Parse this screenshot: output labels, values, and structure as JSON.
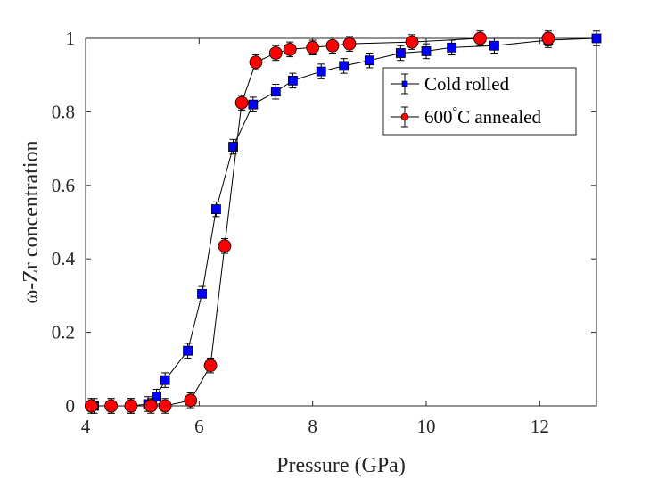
{
  "chart_data": {
    "type": "scatter",
    "title": "",
    "xlabel": "Pressure (GPa)",
    "ylabel": "ω-Zr concentration",
    "xlim": [
      4,
      13
    ],
    "ylim": [
      0,
      1
    ],
    "xticks": [
      4,
      6,
      8,
      10,
      12
    ],
    "yticks": [
      0,
      0.2,
      0.4,
      0.6,
      0.8,
      1
    ],
    "xtick_labels": [
      "4",
      "6",
      "8",
      "10",
      "12"
    ],
    "ytick_labels": [
      "0",
      "0.2",
      "0.4",
      "0.6",
      "0.8",
      "1"
    ],
    "grid": false,
    "legend_position": "top-right",
    "series": [
      {
        "name": "Cold rolled",
        "marker": "square",
        "color": "#0000ff",
        "x": [
          4.15,
          4.45,
          4.8,
          5.1,
          5.25,
          5.4,
          5.8,
          6.05,
          6.3,
          6.6,
          6.95,
          7.35,
          7.65,
          8.15,
          8.55,
          9.0,
          9.55,
          10.0,
          10.45,
          11.2,
          12.15,
          13.0
        ],
        "y": [
          0.0,
          0.0,
          0.0,
          0.005,
          0.025,
          0.07,
          0.15,
          0.305,
          0.535,
          0.705,
          0.82,
          0.855,
          0.885,
          0.91,
          0.925,
          0.94,
          0.96,
          0.965,
          0.975,
          0.98,
          0.995,
          1.0
        ],
        "error": 0.02
      },
      {
        "name": "600°C annealed",
        "marker": "circle",
        "color": "#ff0000",
        "x": [
          4.1,
          4.45,
          4.8,
          5.15,
          5.4,
          5.85,
          6.2,
          6.45,
          6.75,
          7.0,
          7.35,
          7.6,
          8.0,
          8.35,
          8.65,
          9.75,
          10.95,
          12.15
        ],
        "y": [
          0.0,
          0.0,
          0.0,
          0.0,
          0.0,
          0.015,
          0.11,
          0.435,
          0.825,
          0.935,
          0.96,
          0.97,
          0.975,
          0.98,
          0.985,
          0.99,
          1.0,
          1.0
        ],
        "error": 0.02
      }
    ],
    "legend": {
      "entries": [
        {
          "text": "Cold rolled"
        },
        {
          "pre": "600",
          "sup": "°",
          "post": "C annealed"
        }
      ]
    }
  }
}
